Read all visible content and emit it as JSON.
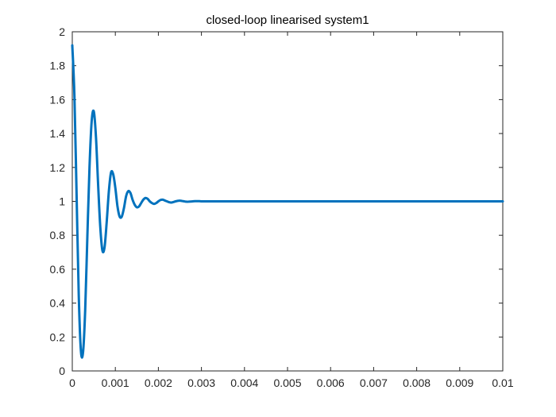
{
  "chart_data": {
    "type": "line",
    "title": "closed-loop linearised system1",
    "xlabel": "",
    "ylabel": "",
    "xlim": [
      0,
      0.01
    ],
    "ylim": [
      0,
      2
    ],
    "x_ticks": [
      "0",
      "0.001",
      "0.002",
      "0.003",
      "0.004",
      "0.005",
      "0.006",
      "0.007",
      "0.008",
      "0.009",
      "0.01"
    ],
    "y_ticks": [
      "0",
      "0.2",
      "0.4",
      "0.6",
      "0.8",
      "1",
      "1.2",
      "1.4",
      "1.6",
      "1.8",
      "2"
    ],
    "grid": false,
    "box": true,
    "line_color": "#0072BD",
    "series": [
      {
        "x": [
          0,
          5e-05,
          0.0001,
          0.00015,
          0.0002,
          0.00025,
          0.0003,
          0.00035,
          0.0004,
          0.00045,
          0.0005,
          0.00055,
          0.0006,
          0.00065,
          0.0007,
          0.00075,
          0.0008,
          0.00085,
          0.0009,
          0.00095,
          0.001,
          0.00105,
          0.0011,
          0.00115,
          0.0012,
          0.00125,
          0.0013,
          0.00135,
          0.0014,
          0.00145,
          0.0015,
          0.00155,
          0.0016,
          0.00165,
          0.0017,
          0.00175,
          0.0018,
          0.00185,
          0.0019,
          0.00195,
          0.002,
          0.00205,
          0.0021,
          0.00215,
          0.0022,
          0.00225,
          0.0023,
          0.00235,
          0.0024,
          0.00245,
          0.0025,
          0.00255,
          0.0026,
          0.00265,
          0.0027,
          0.00275,
          0.0028,
          0.00285,
          0.0029,
          0.00295,
          0.003,
          0.00305,
          0.0031,
          0.00315,
          0.0032,
          0.00325,
          0.0033,
          0.00335,
          0.0034,
          0.00345,
          0.0035,
          0.00355,
          0.0036,
          0.00365,
          0.0037,
          0.00375,
          0.0038,
          0.00385,
          0.0039,
          0.00395,
          0.004,
          0.0041,
          0.0042,
          0.0043,
          0.0044,
          0.0045,
          0.0046,
          0.0047,
          0.0048,
          0.0049,
          0.005,
          0.0055,
          0.006,
          0.0065,
          0.007,
          0.0075,
          0.008,
          0.0085,
          0.009,
          0.0095,
          0.01
        ],
        "y": [
          1.92,
          1.62,
          1.04,
          0.45,
          0.12,
          0.11,
          0.36,
          0.79,
          1.2,
          1.47,
          1.53,
          1.38,
          1.1,
          0.85,
          0.71,
          0.73,
          0.88,
          1.06,
          1.17,
          1.16,
          1.08,
          0.97,
          0.91,
          0.91,
          0.96,
          1.03,
          1.06,
          1.05,
          1.01,
          0.98,
          0.965,
          0.97,
          0.99,
          1.01,
          1.02,
          1.015,
          1.0,
          0.99,
          0.985,
          0.99,
          1.0,
          1.008,
          1.01,
          1.005,
          1.0,
          0.995,
          0.993,
          0.996,
          1.0,
          1.003,
          1.004,
          1.002,
          1.0,
          0.998,
          0.998,
          0.999,
          1.0,
          1.001,
          1.001,
          1.001,
          1.0,
          1.0,
          1.0,
          1.0,
          1.0,
          1.0,
          1.0,
          1.0,
          1.0,
          1.0,
          1.0,
          1.0,
          1.0,
          1.0,
          1.0,
          1.0,
          1.0,
          1.0,
          1.0,
          1.0,
          1.0,
          1.0,
          1.0,
          1.0,
          1.0,
          1.0,
          1.0,
          1.0,
          1.0,
          1.0,
          1.0,
          1.0,
          1.0,
          1.0,
          1.0,
          1.0,
          1.0,
          1.0,
          1.0,
          1.0,
          1.0
        ]
      }
    ]
  }
}
